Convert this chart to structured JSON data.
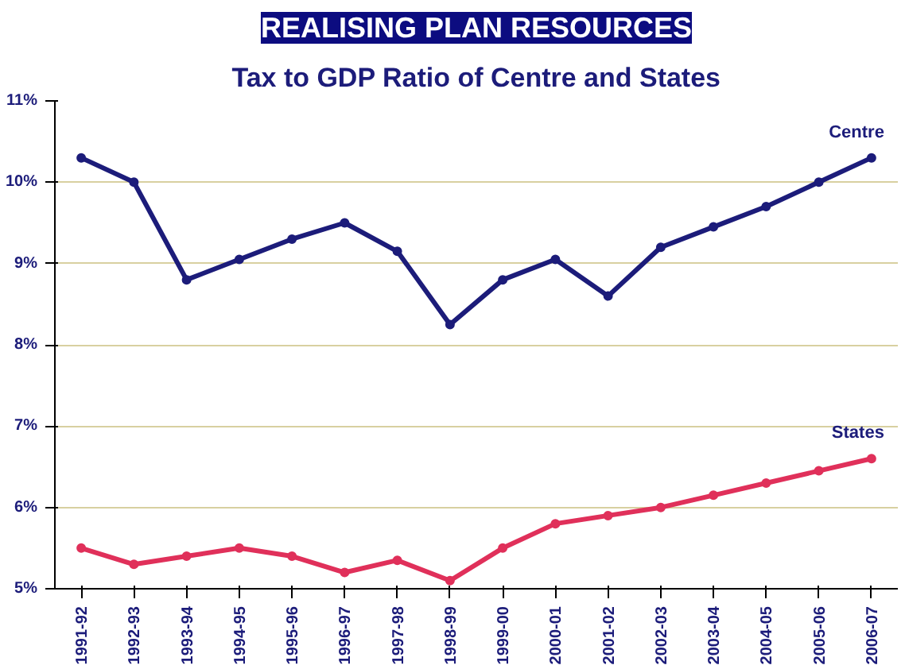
{
  "chart_data": {
    "type": "line",
    "title": "REALISING PLAN RESOURCES",
    "subtitle": "Tax to GDP Ratio of Centre and States",
    "categories": [
      "1991-92",
      "1992-93",
      "1993-94",
      "1994-95",
      "1995-96",
      "1996-97",
      "1997-98",
      "1998-99",
      "1999-00",
      "2000-01",
      "2001-02",
      "2002-03",
      "2003-04",
      "2004-05",
      "2005-06",
      "2006-07"
    ],
    "series": [
      {
        "name": "Centre",
        "color": "#1c1c7a",
        "values": [
          10.3,
          10.0,
          8.8,
          9.05,
          9.3,
          9.5,
          9.15,
          8.25,
          8.8,
          9.05,
          8.6,
          9.2,
          9.45,
          9.7,
          10.0,
          10.3
        ]
      },
      {
        "name": "States",
        "color": "#e0305a",
        "values": [
          5.5,
          5.3,
          5.4,
          5.5,
          5.4,
          5.2,
          5.35,
          5.1,
          5.5,
          5.8,
          5.9,
          6.0,
          6.15,
          6.3,
          6.45,
          6.6
        ]
      }
    ],
    "ylim": [
      5,
      11
    ],
    "yticks": [
      {
        "value": 5,
        "label": "5%"
      },
      {
        "value": 6,
        "label": "6%"
      },
      {
        "value": 7,
        "label": "7%"
      },
      {
        "value": 8,
        "label": "8%"
      },
      {
        "value": 9,
        "label": "9%"
      },
      {
        "value": 10,
        "label": "10%"
      },
      {
        "value": 11,
        "label": "11%"
      }
    ],
    "grid": "y",
    "legend": false,
    "marker": "circle",
    "line_style": "solid"
  }
}
